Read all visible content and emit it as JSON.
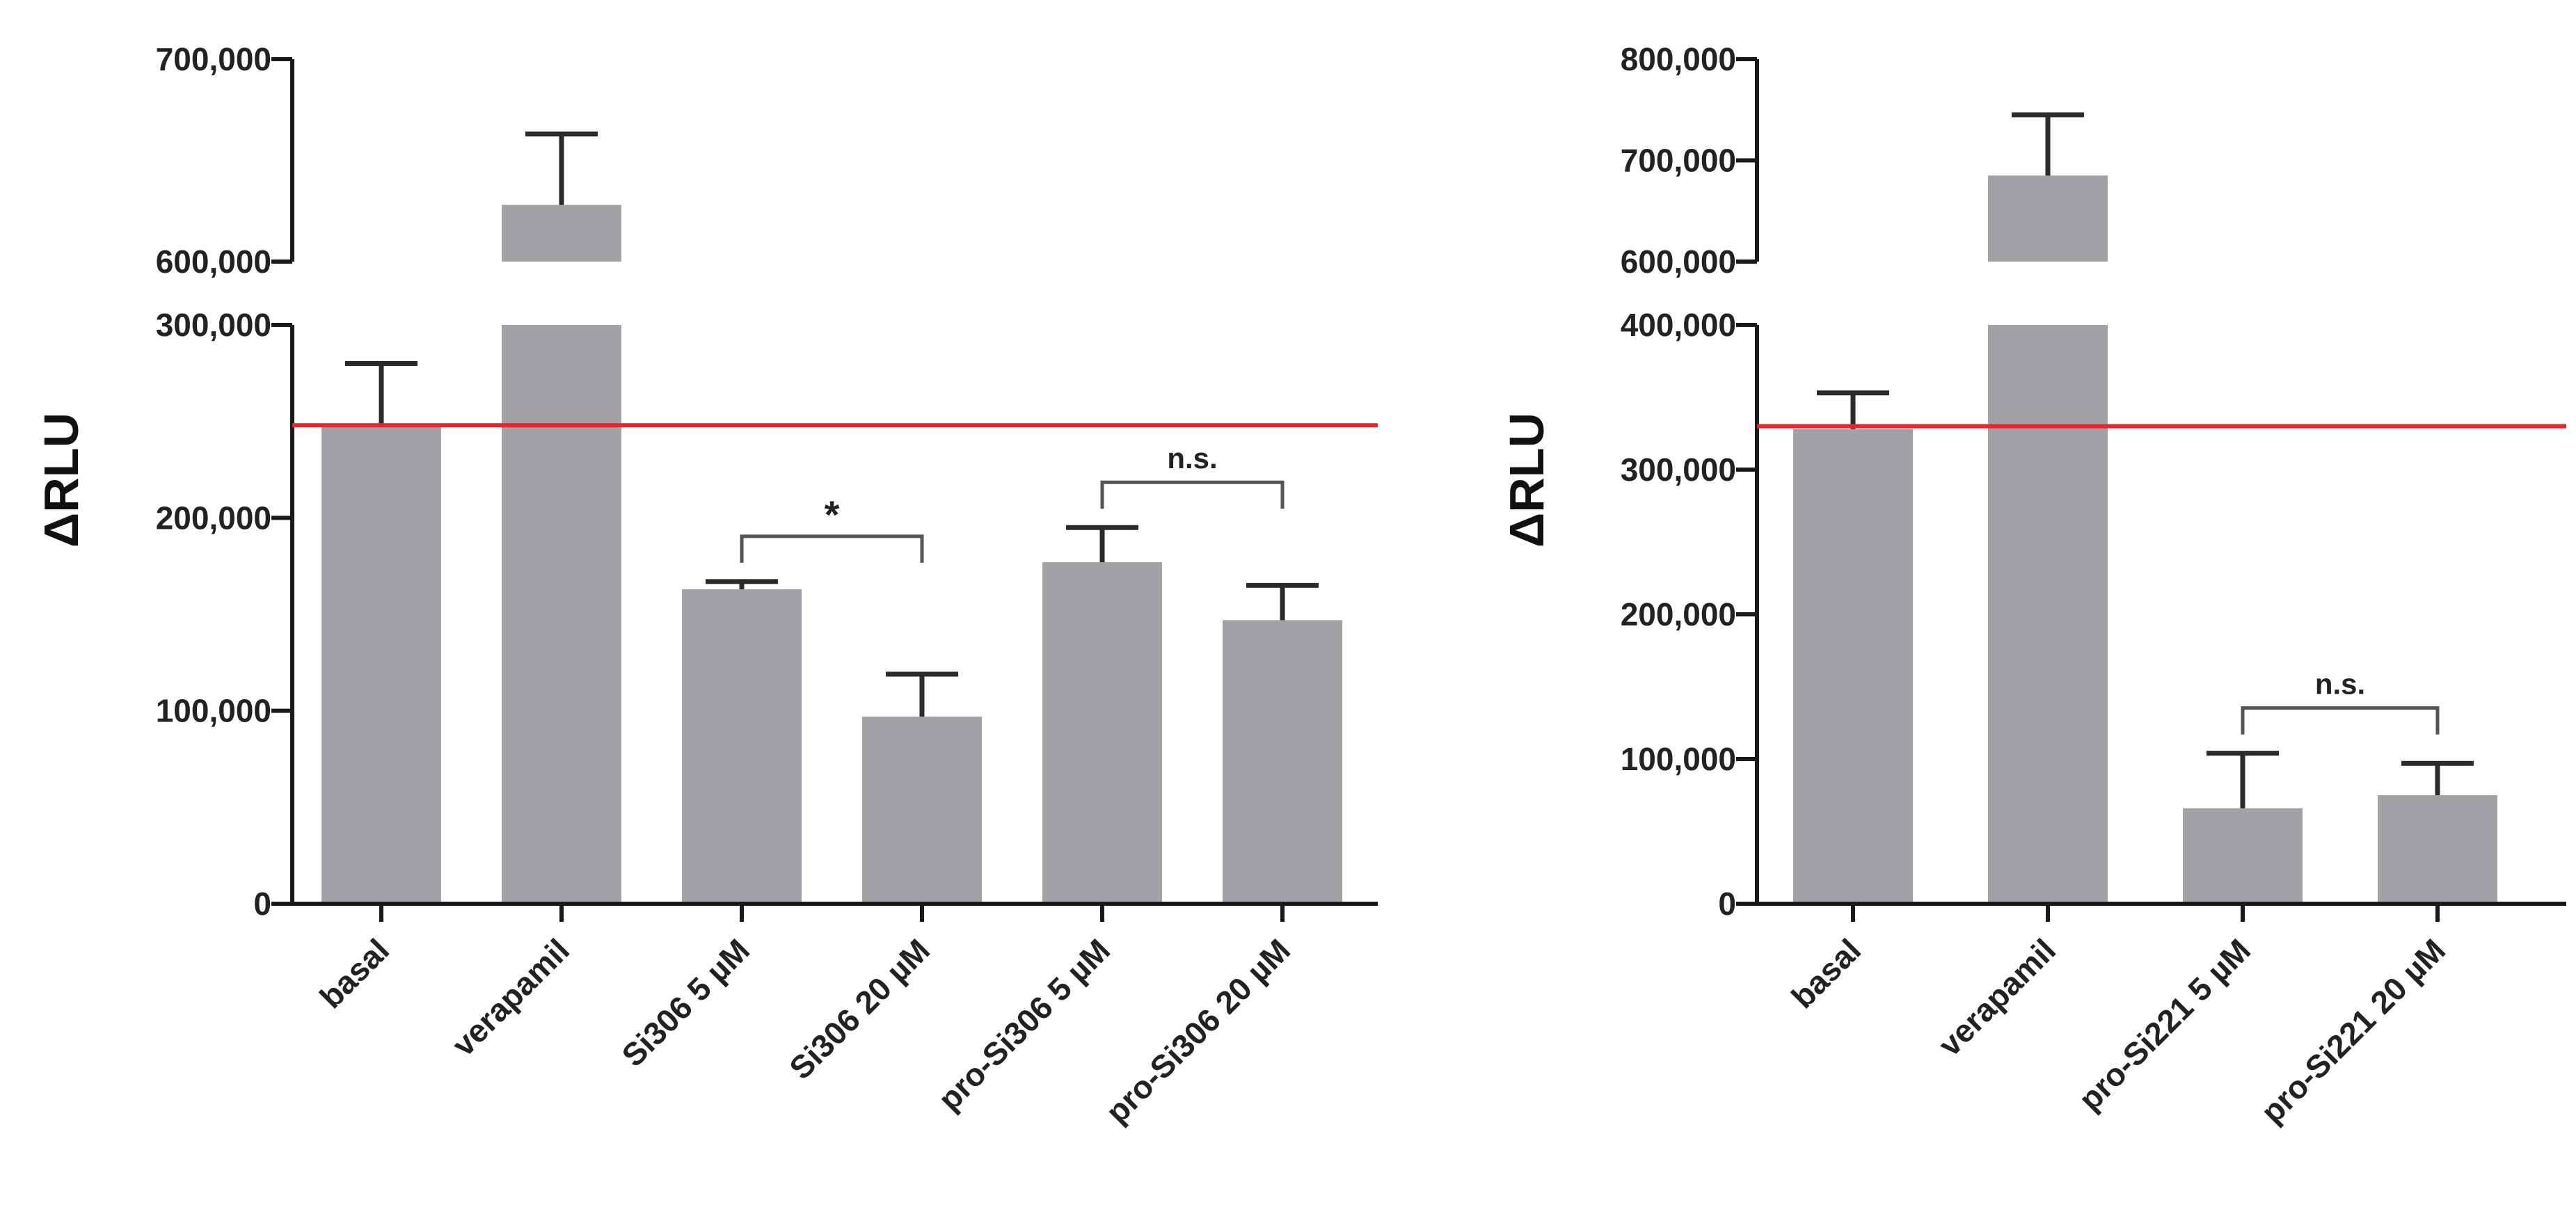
{
  "chart_data": [
    {
      "type": "bar",
      "ylabel": "ΔRLU",
      "categories": [
        "basal",
        "verapamil",
        "Si306 5 µM",
        "Si306 20 µM",
        "pro-Si306 5 µM",
        "pro-Si306 20 µM"
      ],
      "values": [
        248000,
        628000,
        163000,
        97000,
        177000,
        147000
      ],
      "errors": [
        32000,
        35000,
        4000,
        22000,
        18000,
        18000
      ],
      "axis_break": true,
      "lower_range": [
        0,
        300000
      ],
      "upper_range": [
        600000,
        700000
      ],
      "lower_ticks": [
        0,
        100000,
        200000,
        300000
      ],
      "lower_tick_labels": [
        "0",
        "100,000",
        "200,000",
        "300,000"
      ],
      "upper_ticks": [
        600000,
        700000
      ],
      "upper_tick_labels": [
        "600,000",
        "700,000"
      ],
      "reference_line": 248000,
      "reference_color": "#e8262a",
      "bar_color": "#a1a1a6",
      "significance": [
        {
          "from": 2,
          "to": 3,
          "label": "*"
        },
        {
          "from": 4,
          "to": 5,
          "label": "n.s."
        }
      ]
    },
    {
      "type": "bar",
      "ylabel": "ΔRLU",
      "categories": [
        "basal",
        "verapamil",
        "pro-Si221 5 µM",
        "pro-Si221 20 µM"
      ],
      "values": [
        328000,
        685000,
        66000,
        75000
      ],
      "errors": [
        25000,
        60000,
        38000,
        22000
      ],
      "axis_break": true,
      "lower_range": [
        0,
        400000
      ],
      "upper_range": [
        600000,
        800000
      ],
      "lower_ticks": [
        0,
        100000,
        200000,
        300000,
        400000
      ],
      "lower_tick_labels": [
        "0",
        "100,000",
        "200,000",
        "300,000",
        "400,000"
      ],
      "upper_ticks": [
        600000,
        700000,
        800000
      ],
      "upper_tick_labels": [
        "600,000",
        "700,000",
        "800,000"
      ],
      "reference_line": 330000,
      "reference_color": "#e8262a",
      "bar_color": "#a1a1a6",
      "significance": [
        {
          "from": 2,
          "to": 3,
          "label": "n.s."
        }
      ]
    }
  ]
}
